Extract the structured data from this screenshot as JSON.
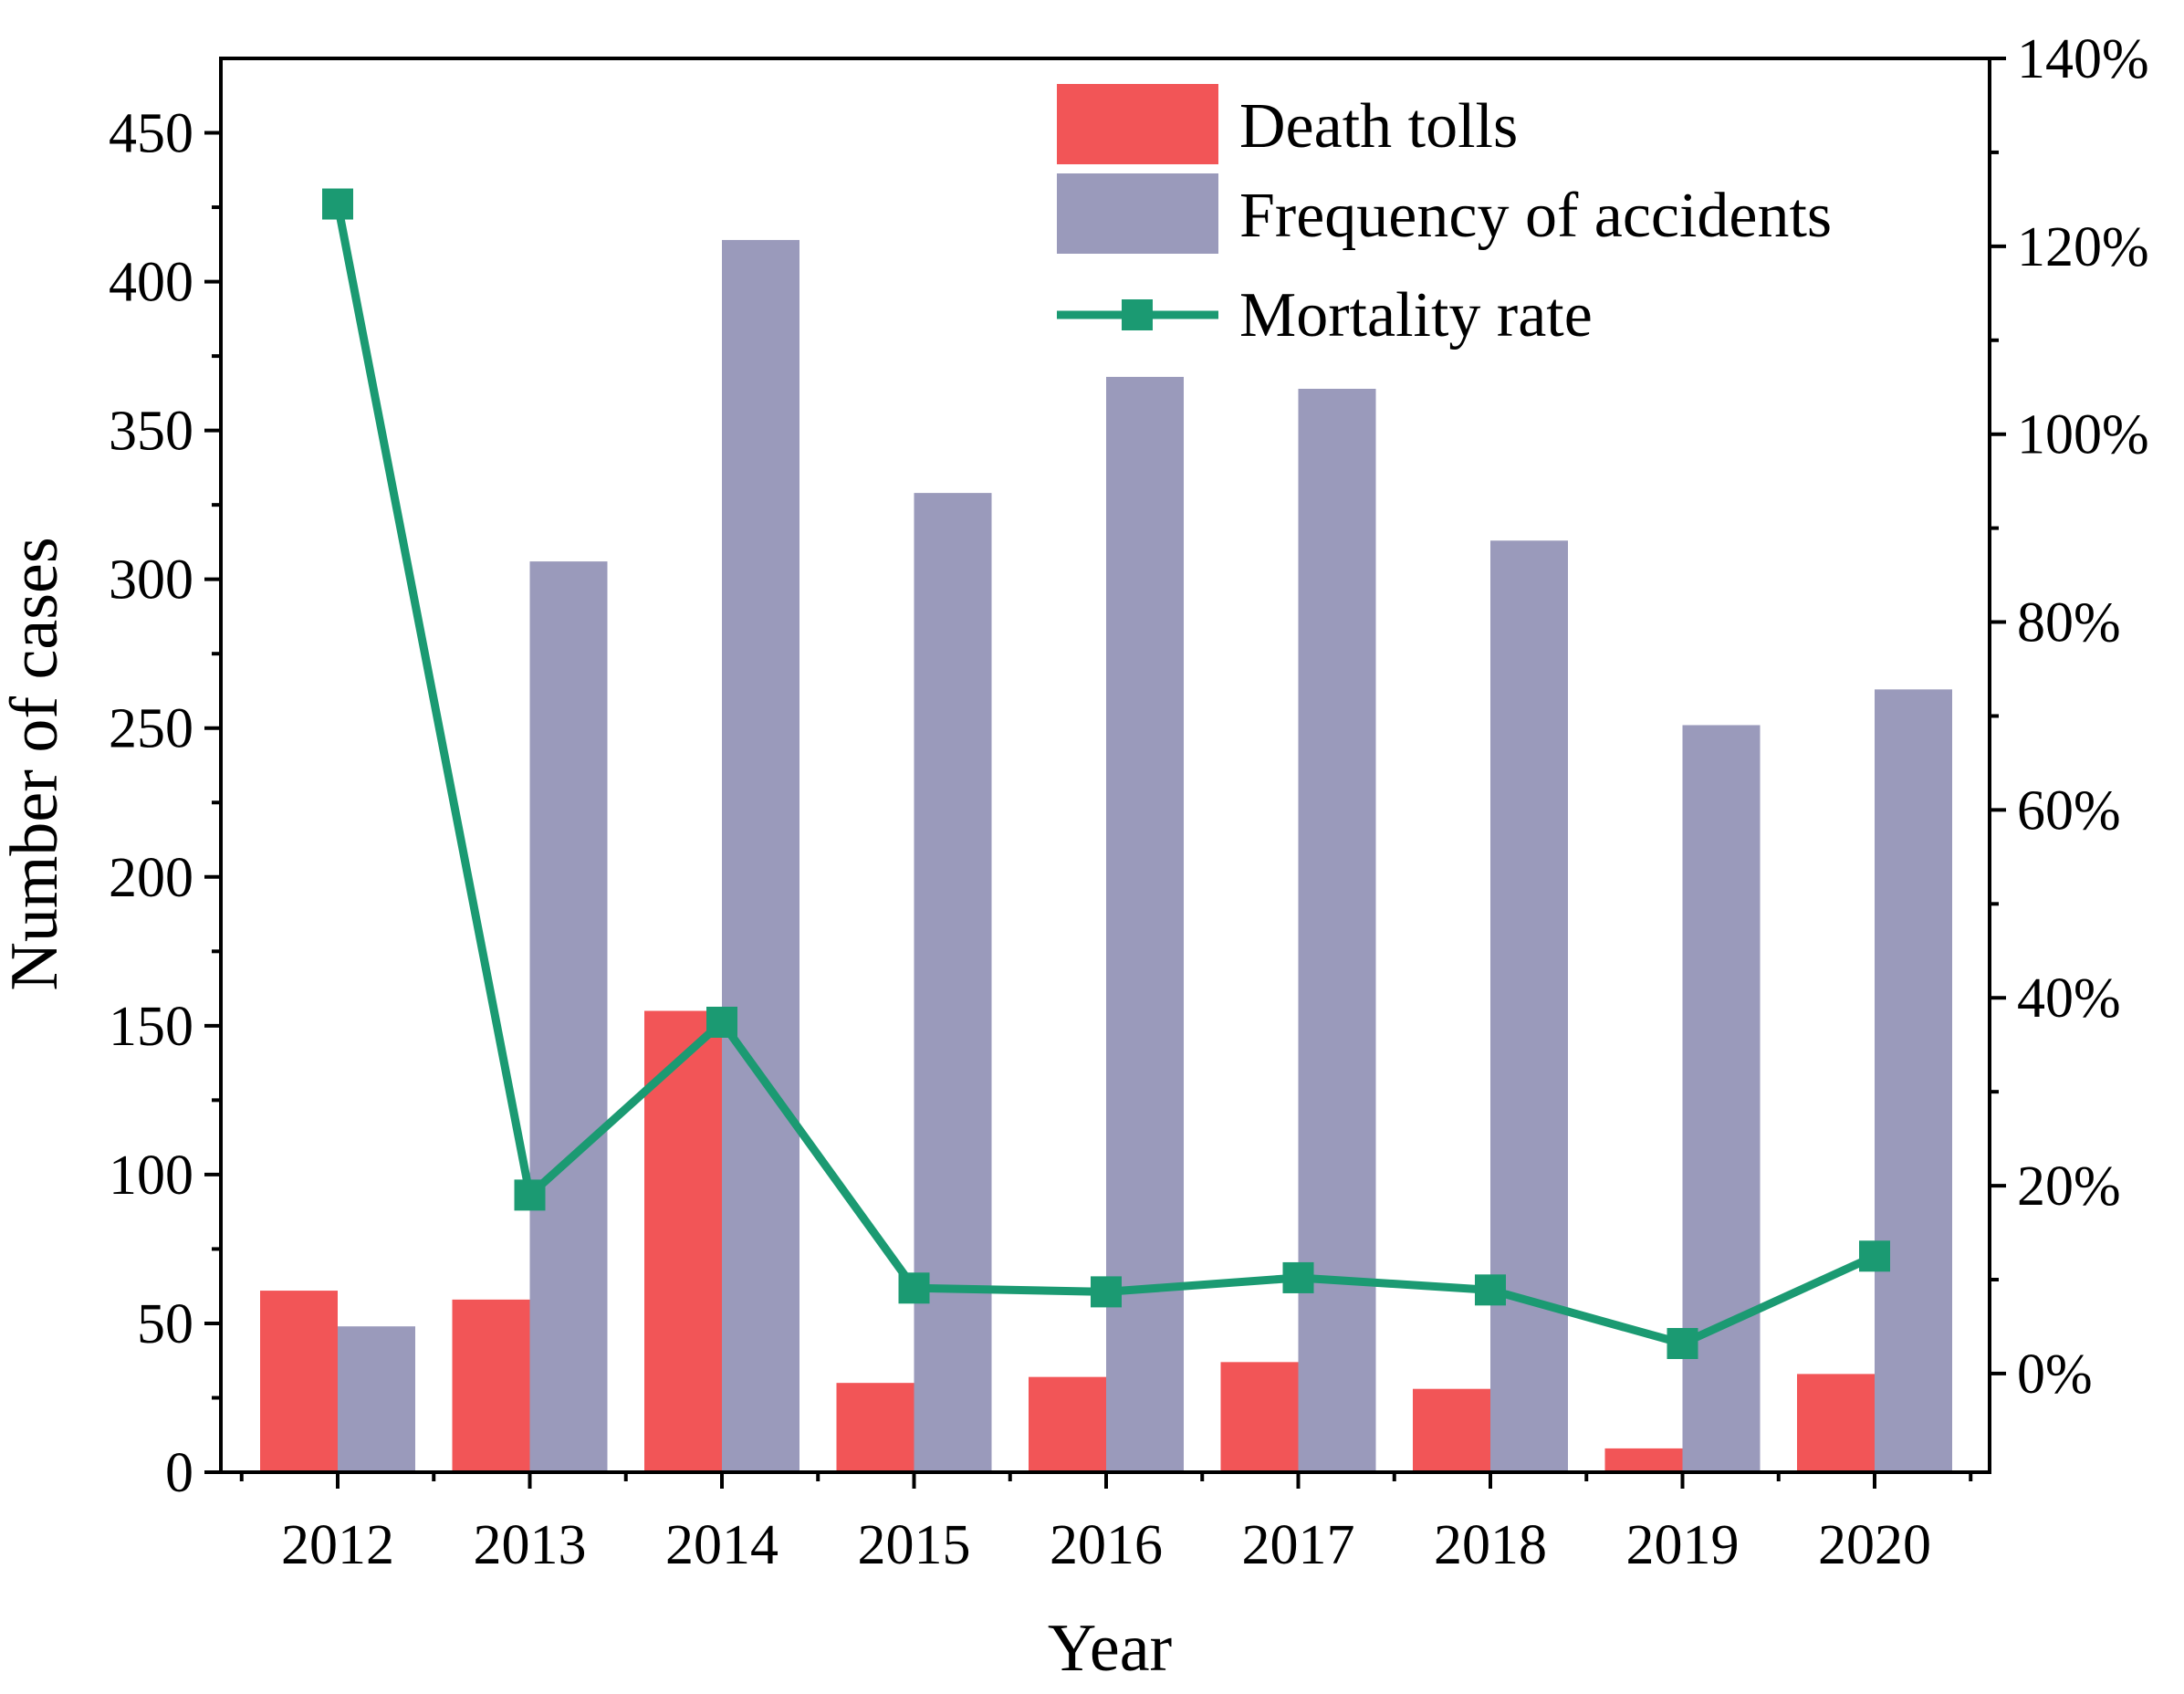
{
  "chart_data": {
    "type": "bar",
    "title": "",
    "xlabel": "Year",
    "ylabel": "Number of cases",
    "ylim": [
      0,
      475
    ],
    "yticks": [
      0,
      50,
      100,
      150,
      200,
      250,
      300,
      350,
      400,
      450
    ],
    "y2lim": [
      -10.5,
      140
    ],
    "y2ticks": [
      0,
      20,
      40,
      60,
      80,
      100,
      120,
      140
    ],
    "y2tick_labels": [
      "0%",
      "20%",
      "40%",
      "60%",
      "80%",
      "100%",
      "120%",
      "140%"
    ],
    "categories": [
      "2012",
      "2013",
      "2014",
      "2015",
      "2016",
      "2017",
      "2018",
      "2019",
      "2020"
    ],
    "series": [
      {
        "name": "Death tolls",
        "type": "bar",
        "axis": "left",
        "color": "#f25557",
        "values": [
          61,
          58,
          155,
          30,
          32,
          37,
          28,
          8,
          33
        ]
      },
      {
        "name": "Frequency of accidents",
        "type": "bar",
        "axis": "left",
        "color": "#9a9abb",
        "values": [
          49,
          306,
          414,
          329,
          368,
          364,
          313,
          251,
          263
        ]
      },
      {
        "name": "Mortality rate",
        "type": "line",
        "axis": "right",
        "color": "#1b9a72",
        "marker": "square",
        "values": [
          124.5,
          19,
          37.4,
          9.1,
          8.7,
          10.2,
          8.9,
          3.2,
          12.5
        ]
      }
    ],
    "legend_position": "top-right",
    "grid": false
  }
}
